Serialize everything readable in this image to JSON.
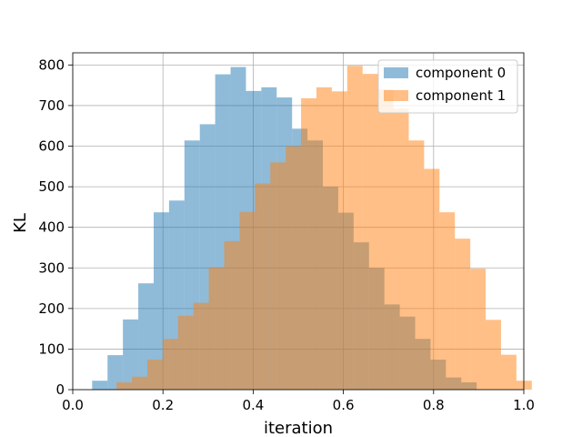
{
  "chart_data": {
    "type": "bar",
    "subtype": "overlapping-histogram",
    "xlabel": "iteration",
    "ylabel": "KL",
    "xlim": [
      0.0,
      1.0
    ],
    "ylim": [
      0,
      830
    ],
    "xticks": [
      "0.0",
      "0.2",
      "0.4",
      "0.6",
      "0.8",
      "1.0"
    ],
    "yticks": [
      "0",
      "100",
      "200",
      "300",
      "400",
      "500",
      "600",
      "700",
      "800"
    ],
    "grid": true,
    "legend_position": "top-right",
    "series": [
      {
        "name": "component 0",
        "color": "#1f77b4",
        "alpha": 0.5,
        "bin_start": 0.043,
        "bin_width": 0.0341,
        "values": [
          22,
          85,
          173,
          262,
          437,
          466,
          614,
          654,
          777,
          795,
          736,
          745,
          720,
          643,
          614,
          500,
          436,
          363,
          300,
          210,
          180,
          125,
          74,
          30,
          18
        ]
      },
      {
        "name": "component 1",
        "color": "#ff7f0e",
        "alpha": 0.5,
        "bin_start": 0.097,
        "bin_width": 0.0341,
        "values": [
          18,
          32,
          74,
          125,
          182,
          214,
          302,
          366,
          438,
          508,
          560,
          600,
          718,
          745,
          735,
          798,
          778,
          740,
          692,
          614,
          544,
          437,
          372,
          298,
          172,
          86,
          22
        ]
      }
    ]
  }
}
